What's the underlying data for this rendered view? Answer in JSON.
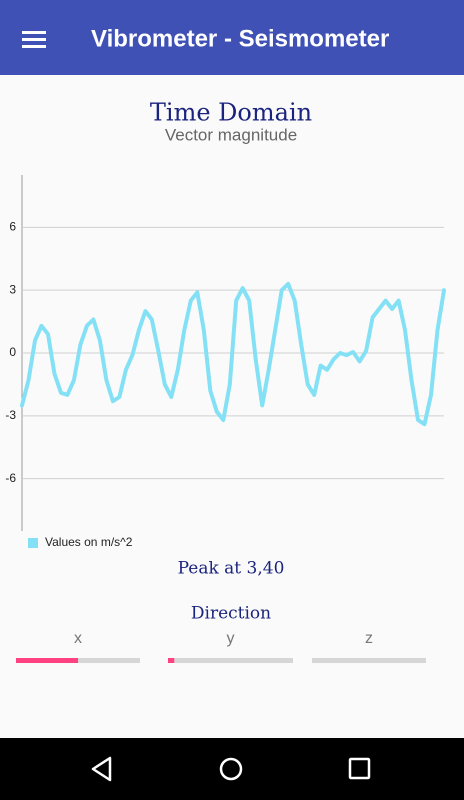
{
  "app_bar": {
    "title": "Vibrometer - Seismometer"
  },
  "chart_data": {
    "type": "line",
    "title": "Time Domain",
    "subtitle": "Vector magnitude",
    "series": [
      {
        "name": "Values on m/s^2",
        "color": "#84e1f5",
        "values": [
          -2.5,
          -1.3,
          0.6,
          1.3,
          0.9,
          -1.0,
          -1.9,
          -2.0,
          -1.3,
          0.4,
          1.3,
          1.6,
          0.6,
          -1.3,
          -2.3,
          -2.1,
          -0.8,
          -0.1,
          1.1,
          2.0,
          1.6,
          0.1,
          -1.5,
          -2.1,
          -0.8,
          1.1,
          2.5,
          2.9,
          1.1,
          -1.8,
          -2.8,
          -3.2,
          -1.5,
          2.5,
          3.1,
          2.5,
          -0.3,
          -2.5,
          -0.8,
          1.1,
          3.0,
          3.3,
          2.5,
          0.4,
          -1.5,
          -2.0,
          -0.6,
          -0.8,
          -0.3,
          0.0,
          -0.1,
          0.05,
          -0.4,
          0.1,
          1.7,
          2.1,
          2.5,
          2.1,
          2.5,
          1.1,
          -1.3,
          -3.2,
          -3.4,
          -2.0,
          1.1,
          3.0
        ]
      }
    ],
    "ylim": [
      -8.5,
      8.5
    ],
    "yticks": [
      -6,
      -3,
      0,
      3,
      6
    ],
    "grid": true,
    "legend": "bottom-left"
  },
  "peak_text": "Peak at 3,40",
  "direction": {
    "title": "Direction",
    "range": [
      0,
      100
    ],
    "axes": [
      {
        "label": "x",
        "value": 50
      },
      {
        "label": "y",
        "value": 5
      },
      {
        "label": "z",
        "value": 0
      }
    ]
  }
}
